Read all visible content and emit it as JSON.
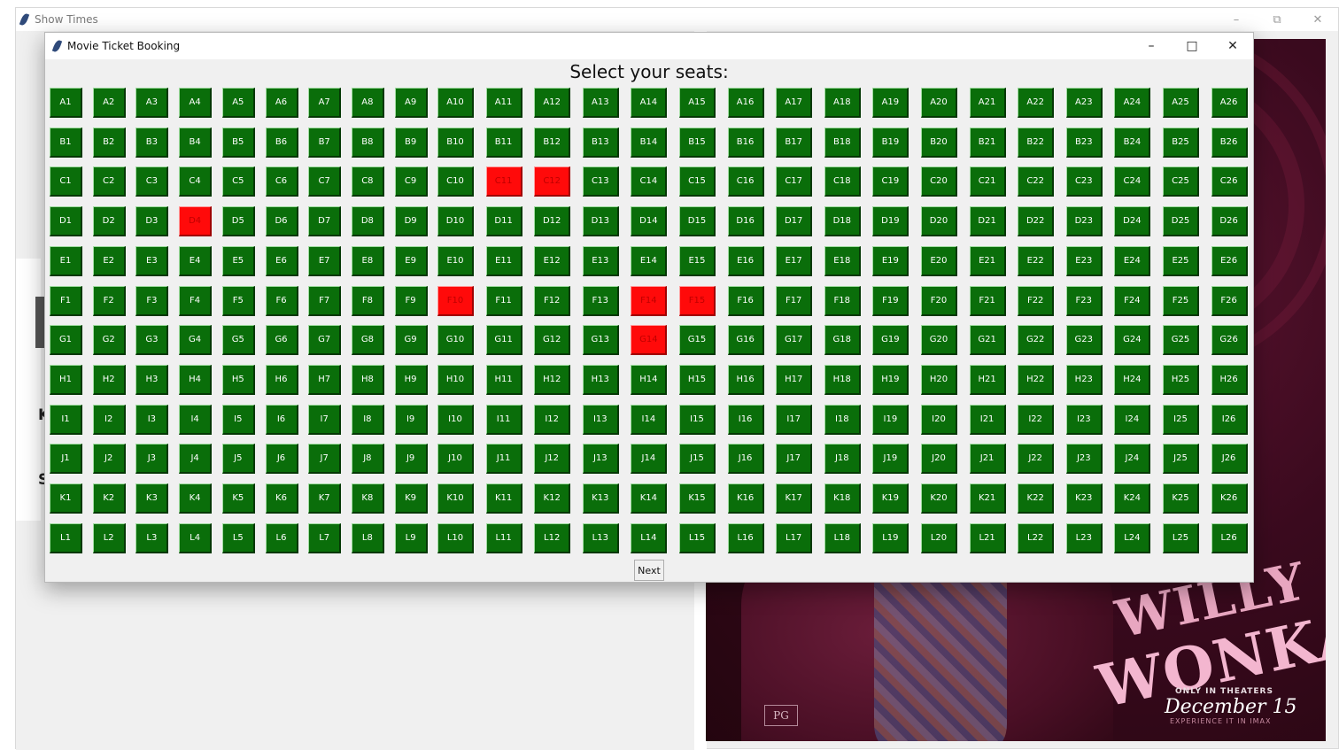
{
  "background_window": {
    "title": "Show Times",
    "controls": {
      "minimize": "–",
      "restore": "⧉",
      "close": "✕"
    },
    "partial_letters": [
      "K",
      "S"
    ]
  },
  "poster": {
    "title_line1": "WILLY",
    "title_line2": "WONKA",
    "tagline": "ONLY IN THEATERS",
    "date": "December 15",
    "imax": "EXPERIENCE IT IN IMAX",
    "rating": "PG"
  },
  "dialog": {
    "title": "Movie Ticket Booking",
    "controls": {
      "minimize": "–",
      "maximize": "□",
      "close": "✕"
    },
    "heading": "Select your seats:",
    "next_label": "Next"
  },
  "seating": {
    "rows": [
      "A",
      "B",
      "C",
      "D",
      "E",
      "F",
      "G",
      "H",
      "I",
      "J",
      "K",
      "L"
    ],
    "seats_per_row": 26,
    "booked": [
      "C11",
      "C12",
      "D4",
      "F10",
      "F14",
      "F15",
      "G14"
    ],
    "colors": {
      "available": "#0a6e0a",
      "booked": "#ff0a0a"
    }
  }
}
